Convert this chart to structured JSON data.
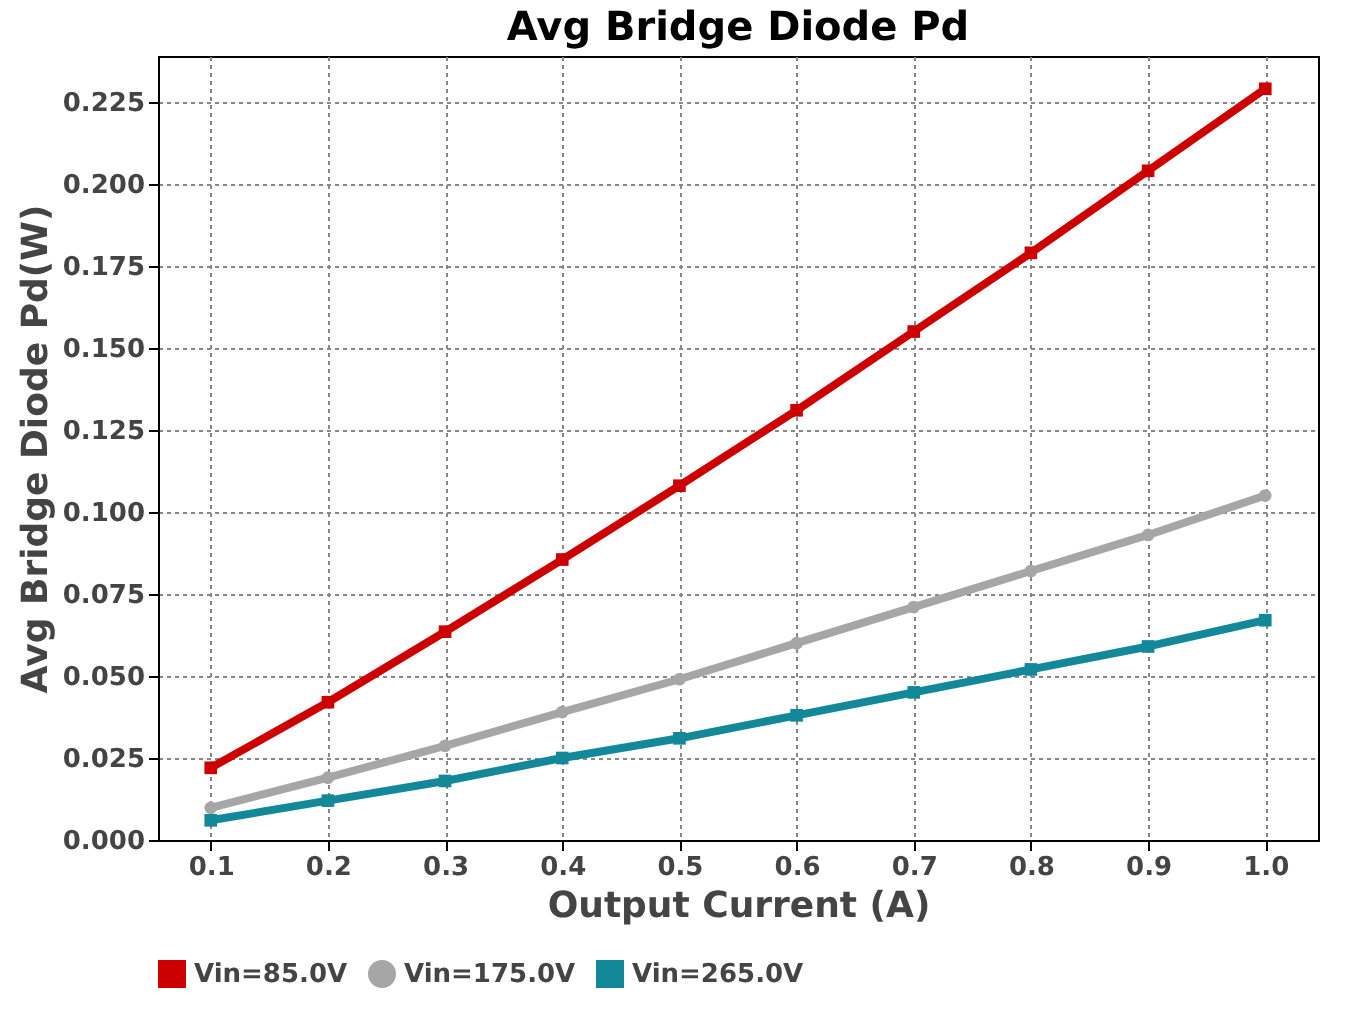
{
  "chart_data": {
    "type": "line",
    "title": "Avg Bridge Diode Pd",
    "xlabel": "Output Current (A)",
    "ylabel": "Avg Bridge Diode Pd(W)",
    "x": [
      0.1,
      0.2,
      0.3,
      0.4,
      0.5,
      0.6,
      0.7,
      0.8,
      0.9,
      1.0
    ],
    "series": [
      {
        "name": "Vin=85.0V",
        "color": "#cc0000",
        "marker": "square",
        "values": [
          0.022,
          0.042,
          0.0635,
          0.0855,
          0.108,
          0.131,
          0.155,
          0.179,
          0.204,
          0.229
        ]
      },
      {
        "name": "Vin=175.0V",
        "color": "#a6a6a6",
        "marker": "circle",
        "values": [
          0.0098,
          0.019,
          0.0287,
          0.039,
          0.049,
          0.06,
          0.071,
          0.082,
          0.093,
          0.105
        ]
      },
      {
        "name": "Vin=265.0V",
        "color": "#138898",
        "marker": "square",
        "values": [
          0.006,
          0.012,
          0.018,
          0.025,
          0.031,
          0.038,
          0.045,
          0.052,
          0.059,
          0.067
        ]
      }
    ],
    "xlim": [
      0.055,
      1.045
    ],
    "xticks": [
      0.1,
      0.2,
      0.3,
      0.4,
      0.5,
      0.6,
      0.7,
      0.8,
      0.9,
      {
        "value": 1,
        "label": "1.0"
      }
    ],
    "ylim": [
      0,
      0.239
    ],
    "yticks": [
      {
        "value": 0,
        "label": "0.000"
      },
      0.025,
      {
        "value": 0.05,
        "label": "0.050"
      },
      0.075,
      {
        "value": 0.1,
        "label": "0.100"
      },
      0.125,
      {
        "value": 0.15,
        "label": "0.150"
      },
      0.175,
      {
        "value": 0.2,
        "label": "0.200"
      },
      0.225
    ],
    "grid": true,
    "legend": "bottom",
    "line_style": "solid"
  }
}
